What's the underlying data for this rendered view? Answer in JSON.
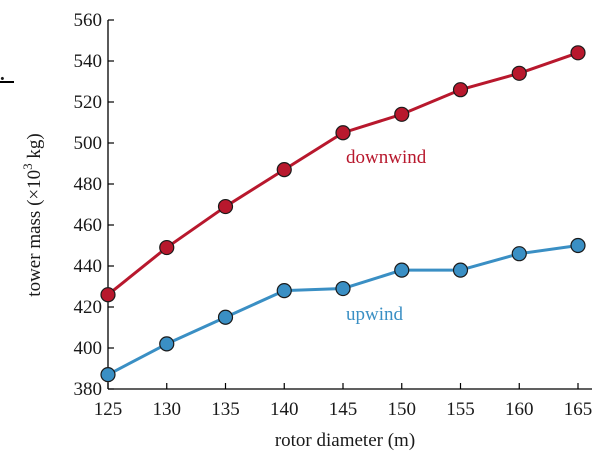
{
  "corner_mark": ".",
  "chart_data": {
    "type": "line",
    "xlabel": "rotor diameter (m)",
    "ylabel": "tower mass (",
    "ylabel_symbol": "×10",
    "ylabel_exp": "3",
    "ylabel_unit": " kg)",
    "xlim": [
      125,
      165
    ],
    "ylim": [
      380,
      560
    ],
    "x_ticks": [
      "125",
      "130",
      "135",
      "140",
      "145",
      "150",
      "155",
      "160",
      "165"
    ],
    "y_ticks": [
      "380",
      "400",
      "420",
      "440",
      "460",
      "480",
      "500",
      "520",
      "540",
      "560"
    ],
    "x": [
      125,
      130,
      135,
      140,
      145,
      150,
      155,
      160,
      165
    ],
    "series": [
      {
        "name": "downwind",
        "color": "#b8182d",
        "values": [
          426,
          449,
          469,
          487,
          505,
          514,
          526,
          534,
          544
        ]
      },
      {
        "name": "upwind",
        "color": "#3a8fc4",
        "values": [
          387,
          402,
          415,
          428,
          429,
          438,
          438,
          446,
          450
        ]
      }
    ],
    "grid": false
  }
}
